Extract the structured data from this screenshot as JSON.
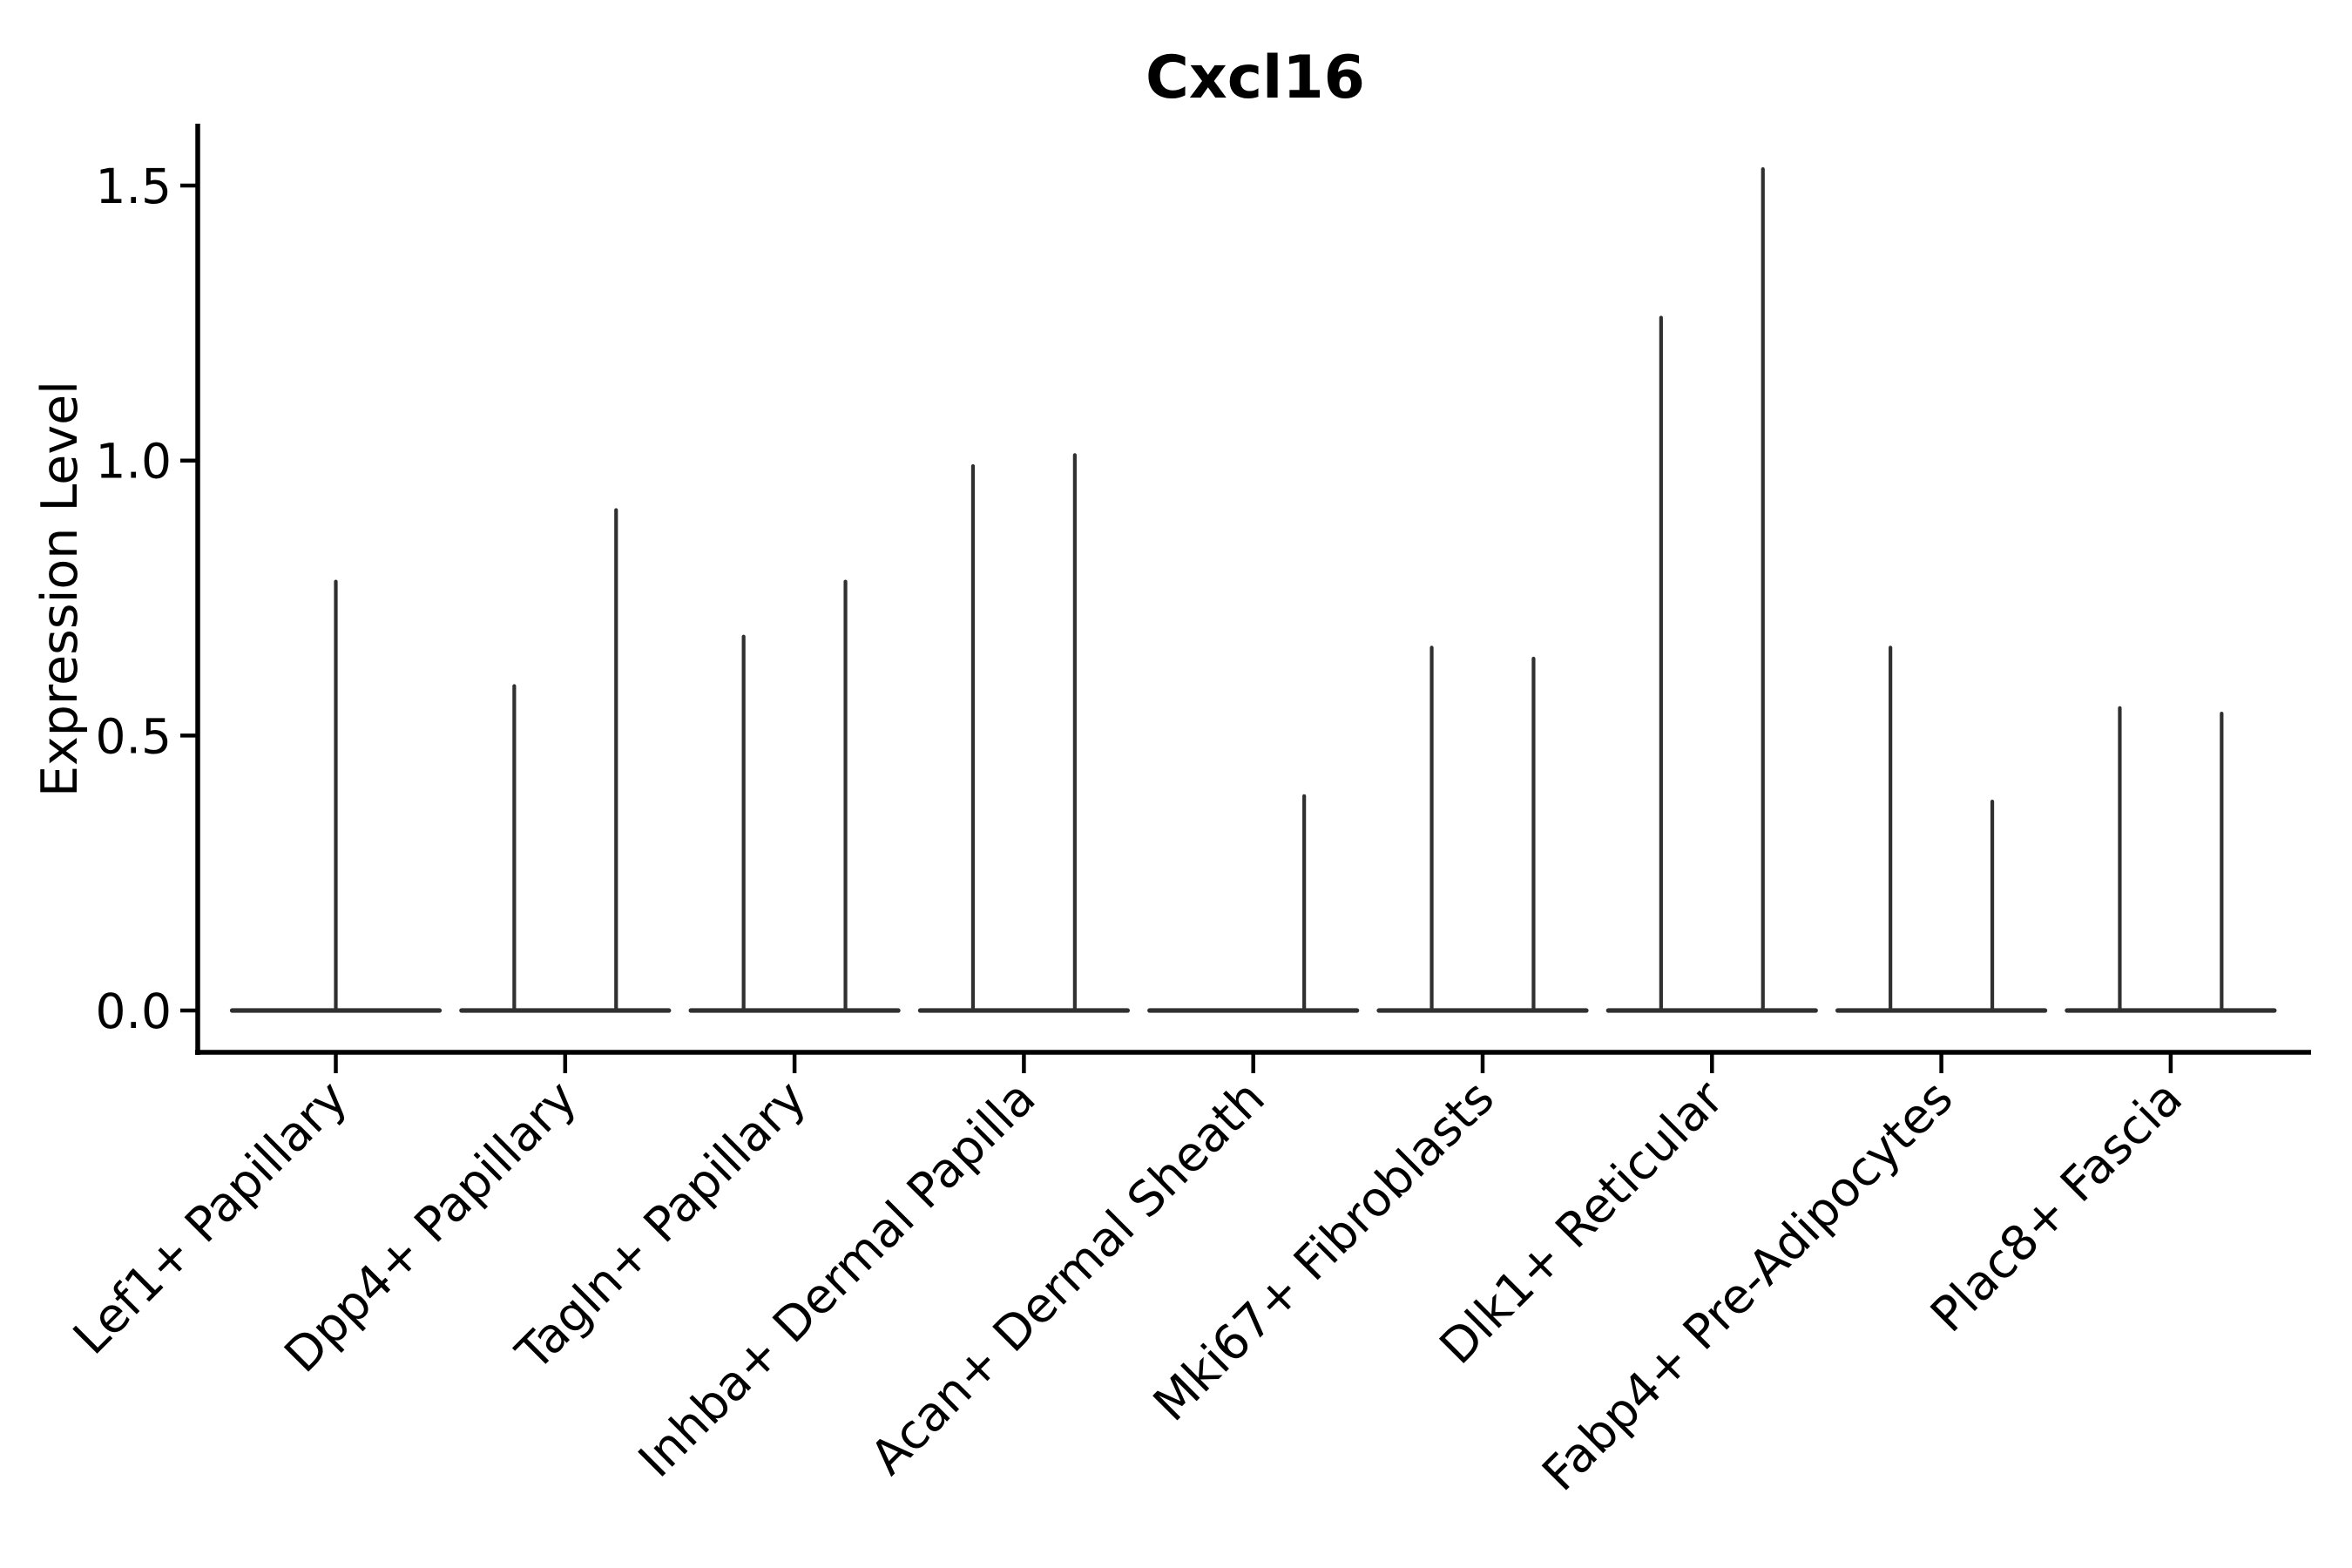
{
  "title": "Cxcl16",
  "colors": {
    "violin_line": "#303030",
    "axis": "#000000",
    "text": "#000000",
    "background": "#ffffff"
  },
  "chart_data": {
    "type": "violin",
    "title": "Cxcl16",
    "xlabel": "",
    "ylabel": "Expression Level",
    "ylim": [
      -0.07,
      1.61
    ],
    "yticks": [
      0.0,
      0.5,
      1.0,
      1.5
    ],
    "ytick_labels": [
      "0.0",
      "0.5",
      "1.0",
      "1.5"
    ],
    "grid": false,
    "legend": "none",
    "x_tick_rotation_deg": 45,
    "categories": [
      "Lef1+ Papillary",
      "Dpp4+ Papillary",
      "Tagln+ Papillary",
      "Inhba+ Dermal Papilla",
      "Acan+ Dermal Sheath",
      "Mki67+ Fibroblasts",
      "Dlk1+ Reticular",
      "Fabp4+ Pre-Adipocytes",
      "Plac8+ Fascia"
    ],
    "description": "Violin plot of Cxcl16 expression per fibroblast cluster; violins are collapsed to a flat base at 0 with thin density spikes reaching the maximum expression value.",
    "violins": [
      {
        "category": "Lef1+ Papillary",
        "baseline_halfwidth": 0.452,
        "spikes": [
          {
            "offset": 0.0,
            "max": 0.78
          }
        ]
      },
      {
        "category": "Dpp4+ Papillary",
        "baseline_halfwidth": 0.452,
        "spikes": [
          {
            "offset": -0.222,
            "max": 0.59
          },
          {
            "offset": 0.222,
            "max": 0.91
          }
        ]
      },
      {
        "category": "Tagln+ Papillary",
        "baseline_halfwidth": 0.452,
        "spikes": [
          {
            "offset": -0.222,
            "max": 0.68
          },
          {
            "offset": 0.222,
            "max": 0.78
          }
        ]
      },
      {
        "category": "Inhba+ Dermal Papilla",
        "baseline_halfwidth": 0.452,
        "spikes": [
          {
            "offset": -0.222,
            "max": 0.99
          },
          {
            "offset": 0.222,
            "max": 1.01
          }
        ]
      },
      {
        "category": "Acan+ Dermal Sheath",
        "baseline_halfwidth": 0.452,
        "spikes": [
          {
            "offset": 0.222,
            "max": 0.39
          }
        ]
      },
      {
        "category": "Mki67+ Fibroblasts",
        "baseline_halfwidth": 0.452,
        "spikes": [
          {
            "offset": -0.222,
            "max": 0.66
          },
          {
            "offset": 0.222,
            "max": 0.64
          }
        ]
      },
      {
        "category": "Dlk1+ Reticular",
        "baseline_halfwidth": 0.452,
        "spikes": [
          {
            "offset": -0.222,
            "max": 1.26
          },
          {
            "offset": 0.222,
            "max": 1.53
          }
        ]
      },
      {
        "category": "Fabp4+ Pre-Adipocytes",
        "baseline_halfwidth": 0.452,
        "spikes": [
          {
            "offset": -0.222,
            "max": 0.66
          },
          {
            "offset": 0.222,
            "max": 0.38
          }
        ]
      },
      {
        "category": "Plac8+ Fascia",
        "baseline_halfwidth": 0.452,
        "spikes": [
          {
            "offset": -0.222,
            "max": 0.55
          },
          {
            "offset": 0.222,
            "max": 0.54
          }
        ]
      }
    ]
  }
}
